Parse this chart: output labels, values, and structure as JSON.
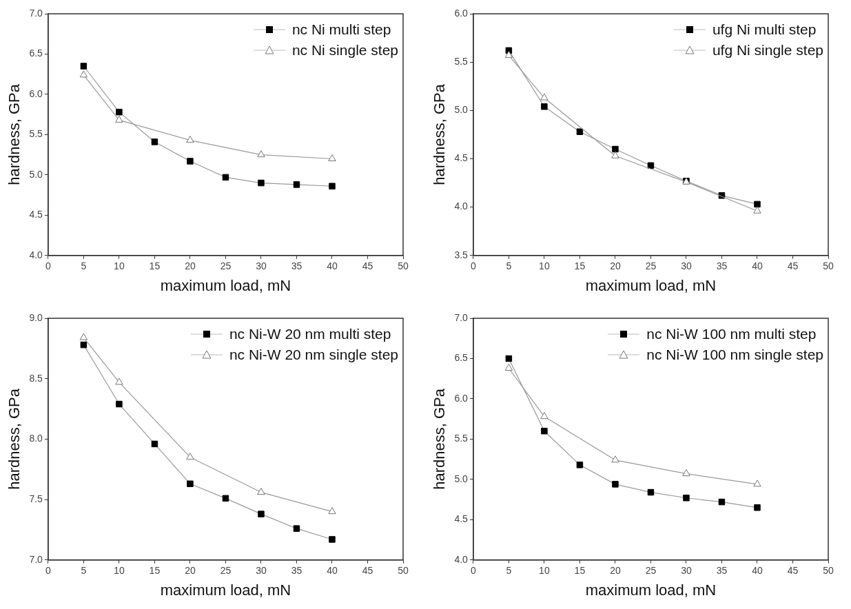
{
  "chart_data": [
    {
      "type": "line",
      "xlabel": "maximum load, mN",
      "ylabel": "hardness, GPa",
      "xlim": [
        0,
        50
      ],
      "xticks": [
        0,
        5,
        10,
        15,
        20,
        25,
        30,
        35,
        40,
        45,
        50
      ],
      "ylim": [
        4,
        7
      ],
      "yticks": [
        {
          "value": 4,
          "label": "4.0"
        },
        {
          "value": 4.5,
          "label": "4.5"
        },
        {
          "value": 5,
          "label": "5.0"
        },
        {
          "value": 5.5,
          "label": "5.5"
        },
        {
          "value": 6,
          "label": "6.0"
        },
        {
          "value": 6.5,
          "label": "6.5"
        },
        {
          "value": 7,
          "label": "7.0"
        }
      ],
      "grid": false,
      "legend": "top right",
      "line_style": "solid",
      "series": [
        {
          "name": "nc Ni multi step",
          "color": "#000000",
          "marker": "square",
          "x": [
            5,
            10,
            15,
            20,
            25,
            30,
            35,
            40
          ],
          "values": [
            6.35,
            5.78,
            5.41,
            5.17,
            4.97,
            4.9,
            4.88,
            4.86
          ]
        },
        {
          "name": "nc Ni single step",
          "color": "#777777",
          "marker": "triangle",
          "x": [
            5,
            10,
            20,
            30,
            40
          ],
          "values": [
            6.24,
            5.68,
            5.43,
            5.25,
            5.2
          ]
        }
      ]
    },
    {
      "type": "line",
      "xlabel": "maximum load, mN",
      "ylabel": "hardness, GPa",
      "xlim": [
        0,
        50
      ],
      "xticks": [
        0,
        5,
        10,
        15,
        20,
        25,
        30,
        35,
        40,
        45,
        50
      ],
      "ylim": [
        3.5,
        6
      ],
      "yticks": [
        {
          "value": 3.5,
          "label": "3.5"
        },
        {
          "value": 4,
          "label": "4.0"
        },
        {
          "value": 4.5,
          "label": "4.5"
        },
        {
          "value": 5,
          "label": "5.0"
        },
        {
          "value": 5.5,
          "label": "5.5"
        },
        {
          "value": 6,
          "label": "6.0"
        }
      ],
      "grid": false,
      "legend": "top right",
      "line_style": "solid",
      "series": [
        {
          "name": "ufg Ni multi step",
          "color": "#000000",
          "marker": "square",
          "x": [
            5,
            10,
            15,
            20,
            25,
            30,
            35,
            40
          ],
          "values": [
            5.62,
            5.04,
            4.78,
            4.6,
            4.43,
            4.27,
            4.12,
            4.03
          ]
        },
        {
          "name": "ufg Ni single step",
          "color": "#777777",
          "marker": "triangle",
          "x": [
            5,
            10,
            20,
            30,
            40
          ],
          "values": [
            5.57,
            5.13,
            4.53,
            4.26,
            3.96
          ]
        }
      ]
    },
    {
      "type": "line",
      "xlabel": "maximum load, mN",
      "ylabel": "hardness, GPa",
      "xlim": [
        0,
        50
      ],
      "xticks": [
        0,
        5,
        10,
        15,
        20,
        25,
        30,
        35,
        40,
        45,
        50
      ],
      "ylim": [
        7,
        9
      ],
      "yticks": [
        {
          "value": 7,
          "label": "7.0"
        },
        {
          "value": 7.5,
          "label": "7.5"
        },
        {
          "value": 8,
          "label": "8.0"
        },
        {
          "value": 8.5,
          "label": "8.5"
        },
        {
          "value": 9,
          "label": "9.0"
        }
      ],
      "grid": false,
      "legend": "top right",
      "line_style": "solid",
      "series": [
        {
          "name": "nc Ni-W 20 nm multi step",
          "color": "#000000",
          "marker": "square",
          "x": [
            5,
            10,
            15,
            20,
            25,
            30,
            35,
            40
          ],
          "values": [
            8.78,
            8.29,
            7.96,
            7.63,
            7.51,
            7.38,
            7.26,
            7.17
          ]
        },
        {
          "name": "nc Ni-W 20 nm single step",
          "color": "#777777",
          "marker": "triangle",
          "x": [
            5,
            10,
            20,
            30,
            40
          ],
          "values": [
            8.84,
            8.47,
            7.85,
            7.56,
            7.4
          ]
        }
      ]
    },
    {
      "type": "line",
      "xlabel": "maximum load, mN",
      "ylabel": "hardness, GPa",
      "xlim": [
        0,
        50
      ],
      "xticks": [
        0,
        5,
        10,
        15,
        20,
        25,
        30,
        35,
        40,
        45,
        50
      ],
      "ylim": [
        4,
        7
      ],
      "yticks": [
        {
          "value": 4,
          "label": "4.0"
        },
        {
          "value": 4.5,
          "label": "4.5"
        },
        {
          "value": 5,
          "label": "5.0"
        },
        {
          "value": 5.5,
          "label": "5.5"
        },
        {
          "value": 6,
          "label": "6.0"
        },
        {
          "value": 6.5,
          "label": "6.5"
        },
        {
          "value": 7,
          "label": "7.0"
        }
      ],
      "grid": false,
      "legend": "top right",
      "line_style": "solid",
      "series": [
        {
          "name": "nc Ni-W 100 nm multi step",
          "color": "#000000",
          "marker": "square",
          "x": [
            5,
            10,
            15,
            20,
            25,
            30,
            35,
            40
          ],
          "values": [
            6.5,
            5.6,
            5.18,
            4.94,
            4.84,
            4.77,
            4.72,
            4.65
          ]
        },
        {
          "name": "nc Ni-W 100 nm single step",
          "color": "#777777",
          "marker": "triangle",
          "x": [
            5,
            10,
            20,
            30,
            40
          ],
          "values": [
            6.38,
            5.78,
            5.24,
            5.07,
            4.94
          ]
        }
      ]
    }
  ]
}
